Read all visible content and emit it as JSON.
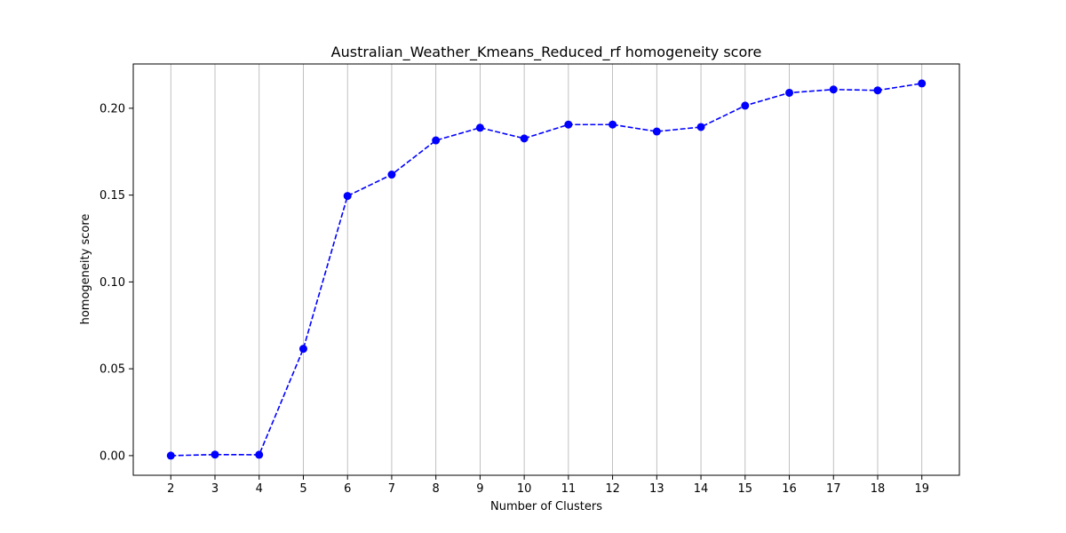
{
  "chart_data": {
    "type": "line",
    "title": "Australian_Weather_Kmeans_Reduced_rf homogeneity score",
    "xlabel": "Number of Clusters",
    "ylabel": "homogeneity score",
    "x": [
      2,
      3,
      4,
      5,
      6,
      7,
      8,
      9,
      10,
      11,
      12,
      13,
      14,
      15,
      16,
      17,
      18,
      19
    ],
    "y_ticks": [
      "0.00",
      "0.05",
      "0.10",
      "0.15",
      "0.20"
    ],
    "xlim": [
      1.15,
      19.85
    ],
    "ylim": [
      -0.0113,
      0.2255
    ],
    "grid": "vertical",
    "series": [
      {
        "values": [
          0.0,
          0.0006,
          0.0005,
          0.0615,
          0.1495,
          0.1618,
          0.1815,
          0.1888,
          0.1826,
          0.1906,
          0.1906,
          0.1866,
          0.1892,
          0.2015,
          0.2089,
          0.2108,
          0.2103,
          0.2143
        ],
        "color": "#0000ff",
        "line_style": "dashed",
        "marker": "circle"
      }
    ]
  }
}
